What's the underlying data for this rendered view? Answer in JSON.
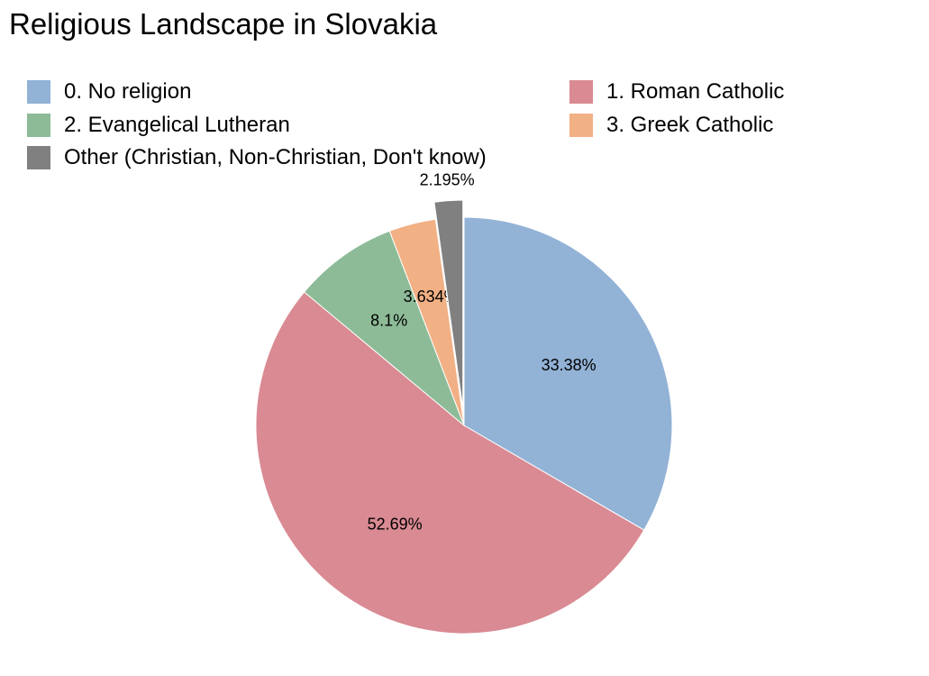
{
  "title": "Religious Landscape in Slovakia",
  "chart_data": {
    "type": "pie",
    "title": "Religious Landscape in Slovakia",
    "legend_position": "top",
    "start_angle_deg": 0,
    "direction": "clockwise",
    "slices": [
      {
        "label": "0. No religion",
        "value": 33.38,
        "value_label": "33.38%",
        "color": "#92b2d6",
        "exploded": false
      },
      {
        "label": "1. Roman Catholic",
        "value": 52.69,
        "value_label": "52.69%",
        "color": "#d98a93",
        "exploded": false
      },
      {
        "label": "2. Evangelical Lutheran",
        "value": 8.1,
        "value_label": "8.1%",
        "color": "#8dbb97",
        "exploded": false
      },
      {
        "label": "3. Greek Catholic",
        "value": 3.634,
        "value_label": "3.634%",
        "color": "#f2b085",
        "exploded": false
      },
      {
        "label": "Other (Christian, Non-Christian, Don't know)",
        "value": 2.195,
        "value_label": "2.195%",
        "color": "#808080",
        "exploded": true
      }
    ]
  }
}
